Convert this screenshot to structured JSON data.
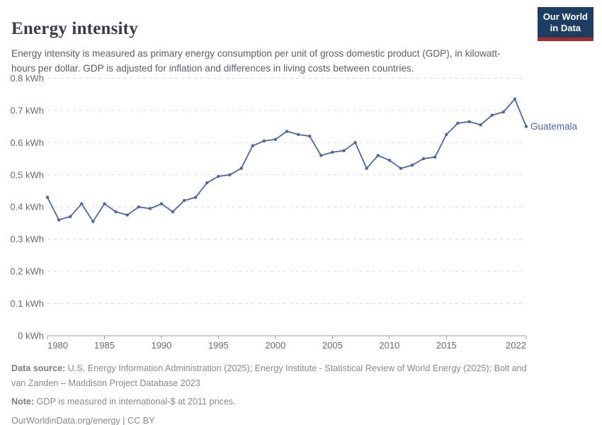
{
  "header": {
    "title": "Energy intensity",
    "subtitle": "Energy intensity is measured as primary energy consumption per unit of gross domestic product (GDP), in kilowatt-hours per dollar. GDP is adjusted for inflation and differences in living costs between countries.",
    "logo": {
      "line1": "Our World",
      "line2": "in Data"
    }
  },
  "chart_data": {
    "type": "line",
    "title": "Energy intensity",
    "xlabel": "",
    "ylabel": "",
    "unit": "kWh",
    "ylim": [
      0,
      0.8
    ],
    "grid": "horizontal-dashed",
    "legend_position": "end-of-line-label",
    "yticks": [
      0,
      0.1,
      0.2,
      0.3,
      0.4,
      0.5,
      0.6,
      0.7,
      0.8
    ],
    "ytick_labels": [
      "0 kWh",
      "0.1 kWh",
      "0.2 kWh",
      "0.3 kWh",
      "0.4 kWh",
      "0.5 kWh",
      "0.6 kWh",
      "0.7 kWh",
      "0.8 kWh"
    ],
    "xticks": [
      1980,
      1985,
      1990,
      1995,
      2000,
      2005,
      2010,
      2015,
      2022
    ],
    "xtick_labels": [
      "1980",
      "1985",
      "1990",
      "1995",
      "2000",
      "2005",
      "2010",
      "2015",
      "2022"
    ],
    "x": [
      1980,
      1981,
      1982,
      1983,
      1984,
      1985,
      1986,
      1987,
      1988,
      1989,
      1990,
      1991,
      1992,
      1993,
      1994,
      1995,
      1996,
      1997,
      1998,
      1999,
      2000,
      2001,
      2002,
      2003,
      2004,
      2005,
      2006,
      2007,
      2008,
      2009,
      2010,
      2011,
      2012,
      2013,
      2014,
      2015,
      2016,
      2017,
      2018,
      2019,
      2020,
      2021,
      2022
    ],
    "series": [
      {
        "name": "Guatemala",
        "color": "#4866a8",
        "values": [
          0.43,
          0.36,
          0.37,
          0.41,
          0.355,
          0.41,
          0.385,
          0.375,
          0.4,
          0.395,
          0.41,
          0.385,
          0.42,
          0.43,
          0.475,
          0.495,
          0.5,
          0.52,
          0.59,
          0.605,
          0.61,
          0.635,
          0.625,
          0.62,
          0.56,
          0.57,
          0.575,
          0.6,
          0.52,
          0.56,
          0.545,
          0.52,
          0.53,
          0.55,
          0.555,
          0.625,
          0.66,
          0.665,
          0.655,
          0.685,
          0.695,
          0.735,
          0.65
        ]
      }
    ],
    "end_label": "Guatemala"
  },
  "footer": {
    "data_source_label": "Data source:",
    "data_source_text": " U.S. Energy Information Administration (2025); Energy Institute - Statistical Review of World Energy (2025); Bolt and van Zanden – Maddison Project Database 2023",
    "note_label": "Note:",
    "note_text": " GDP is measured in international-$ at 2011 prices.",
    "link": "OurWorldinData.org/energy | CC BY"
  },
  "colors": {
    "line": "#4866a8",
    "grid": "#dadada",
    "axis": "#9e9e9e",
    "tick_text": "#6b6b6b",
    "title_text": "#383e47",
    "subtitle_text": "#575f66",
    "footer_text": "#898989",
    "logo_bg": "#1d3d63",
    "logo_red": "#a22e2e"
  }
}
